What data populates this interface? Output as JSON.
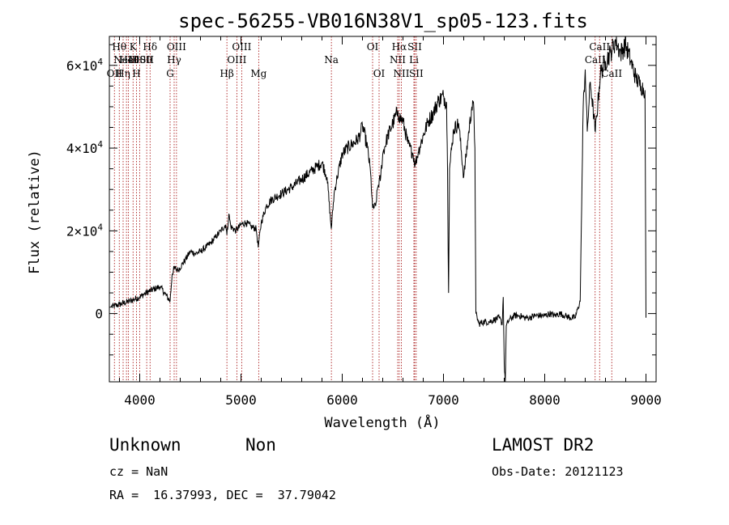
{
  "chart_data": {
    "type": "line",
    "title": "spec-56255-VB016N38V1_sp05-123.fits",
    "xlabel": "Wavelength (Å)",
    "ylabel": "Flux (relative)",
    "xlim": [
      3700,
      9100
    ],
    "ylim": [
      -16500,
      67000
    ],
    "xticks": [
      {
        "value": 4000,
        "label": "4000"
      },
      {
        "value": 5000,
        "label": "5000"
      },
      {
        "value": 6000,
        "label": "6000"
      },
      {
        "value": 7000,
        "label": "7000"
      },
      {
        "value": 8000,
        "label": "8000"
      },
      {
        "value": 9000,
        "label": "9000"
      }
    ],
    "yticks": [
      {
        "value": 0,
        "mant": "0",
        "exp": ""
      },
      {
        "value": 20000,
        "mant": "2×10",
        "exp": "4"
      },
      {
        "value": 40000,
        "mant": "4×10",
        "exp": "4"
      },
      {
        "value": 60000,
        "mant": "6×10",
        "exp": "4"
      }
    ],
    "spectrum": {
      "x": [
        3700,
        3800,
        3900,
        4000,
        4050,
        4100,
        4150,
        4200,
        4250,
        4300,
        4320,
        4340,
        4380,
        4450,
        4500,
        4550,
        4600,
        4650,
        4700,
        4750,
        4800,
        4850,
        4861,
        4880,
        4900,
        4950,
        5000,
        5050,
        5100,
        5150,
        5170,
        5200,
        5250,
        5300,
        5400,
        5500,
        5600,
        5700,
        5750,
        5800,
        5850,
        5892,
        5920,
        5950,
        6000,
        6050,
        6100,
        6150,
        6180,
        6200,
        6250,
        6280,
        6300,
        6330,
        6350,
        6380,
        6400,
        6450,
        6500,
        6550,
        6563,
        6600,
        6650,
        6700,
        6720,
        6750,
        6800,
        6850,
        6900,
        6950,
        7000,
        7030,
        7040,
        7050,
        7060,
        7100,
        7150,
        7200,
        7250,
        7280,
        7300,
        7310,
        7320,
        7350,
        7400,
        7450,
        7500,
        7550,
        7580,
        7590,
        7600,
        7610,
        7620,
        7650,
        7700,
        7750,
        7800,
        7850,
        7900,
        7950,
        8000,
        8050,
        8100,
        8150,
        8200,
        8250,
        8300,
        8350,
        8380,
        8400,
        8420,
        8450,
        8500,
        8550,
        8600,
        8650,
        8700,
        8750,
        8800,
        8850,
        8900,
        8950,
        8990,
        9000
      ],
      "y": [
        1500,
        2200,
        3000,
        4000,
        4800,
        5500,
        6000,
        6500,
        4800,
        3000,
        9500,
        11000,
        10500,
        13000,
        15000,
        14500,
        15000,
        16000,
        17000,
        18500,
        20000,
        21500,
        19000,
        24000,
        21000,
        20000,
        21500,
        22000,
        21000,
        20500,
        16000,
        22000,
        26000,
        27500,
        29000,
        30500,
        32500,
        34500,
        35500,
        36500,
        33000,
        20500,
        29000,
        33000,
        38500,
        40000,
        41000,
        42000,
        43500,
        45500,
        40000,
        34000,
        25500,
        26000,
        30500,
        33000,
        38500,
        43000,
        46000,
        49000,
        47500,
        46500,
        41000,
        38500,
        36000,
        39000,
        43000,
        46500,
        48500,
        51500,
        52500,
        51000,
        35000,
        5000,
        35000,
        44500,
        46000,
        33000,
        44000,
        50000,
        49500,
        40000,
        0,
        -2500,
        -2000,
        -2000,
        -1500,
        -1000,
        -2500,
        4000,
        -12000,
        -17000,
        -3000,
        -1500,
        -500,
        -500,
        -1000,
        -1000,
        -500,
        -500,
        -500,
        0,
        -500,
        0,
        -500,
        -1000,
        -1000,
        3000,
        50000,
        59000,
        44000,
        56000,
        44000,
        58000,
        61000,
        63000,
        66000,
        63000,
        65000,
        61000,
        57000,
        55000,
        54000,
        -1000
      ]
    },
    "lines": [
      {
        "wl": 3750,
        "label": "OII",
        "row": 3
      },
      {
        "wl": 3798,
        "label": "Hθ",
        "row": 1
      },
      {
        "wl": 3836,
        "label": "Hη",
        "row": 3
      },
      {
        "wl": 3869,
        "label": "NeIII",
        "row": 2
      },
      {
        "wl": 3889,
        "label": "HeI",
        "row": 2
      },
      {
        "wl": 3934,
        "label": "K",
        "row": 1
      },
      {
        "wl": 3968,
        "label": "H",
        "row": 3
      },
      {
        "wl": 4000,
        "label": "4000",
        "row": 2
      },
      {
        "wl": 4069,
        "label": "SII",
        "row": 2
      },
      {
        "wl": 4102,
        "label": "Hδ",
        "row": 1
      },
      {
        "wl": 4300,
        "label": "G",
        "row": 3
      },
      {
        "wl": 4340,
        "label": "Hγ",
        "row": 2
      },
      {
        "wl": 4363,
        "label": "OIII",
        "row": 1
      },
      {
        "wl": 4861,
        "label": "Hβ",
        "row": 3
      },
      {
        "wl": 4959,
        "label": "OIII",
        "row": 2
      },
      {
        "wl": 5007,
        "label": "OIII",
        "row": 1
      },
      {
        "wl": 5175,
        "label": "Mg",
        "row": 3
      },
      {
        "wl": 5893,
        "label": "Na",
        "row": 2
      },
      {
        "wl": 6300,
        "label": "OI",
        "row": 1
      },
      {
        "wl": 6364,
        "label": "OI",
        "row": 3
      },
      {
        "wl": 6548,
        "label": "NII",
        "row": 2
      },
      {
        "wl": 6563,
        "label": "Hα",
        "row": 1
      },
      {
        "wl": 6584,
        "label": "NII",
        "row": 3
      },
      {
        "wl": 6708,
        "label": "Li",
        "row": 2
      },
      {
        "wl": 6716,
        "label": "SII",
        "row": 1
      },
      {
        "wl": 6731,
        "label": "SII",
        "row": 3
      },
      {
        "wl": 8498,
        "label": "CaII",
        "row": 2
      },
      {
        "wl": 8542,
        "label": "CaII",
        "row": 1
      },
      {
        "wl": 8662,
        "label": "CaII",
        "row": 3
      }
    ]
  },
  "info": {
    "class": "Unknown",
    "subclass": "Non",
    "cz": "cz = NaN",
    "coords": "RA =  16.37993, DEC =  37.79042",
    "survey": "LAMOST DR2",
    "obs_date": "Obs-Date: 20121123"
  }
}
